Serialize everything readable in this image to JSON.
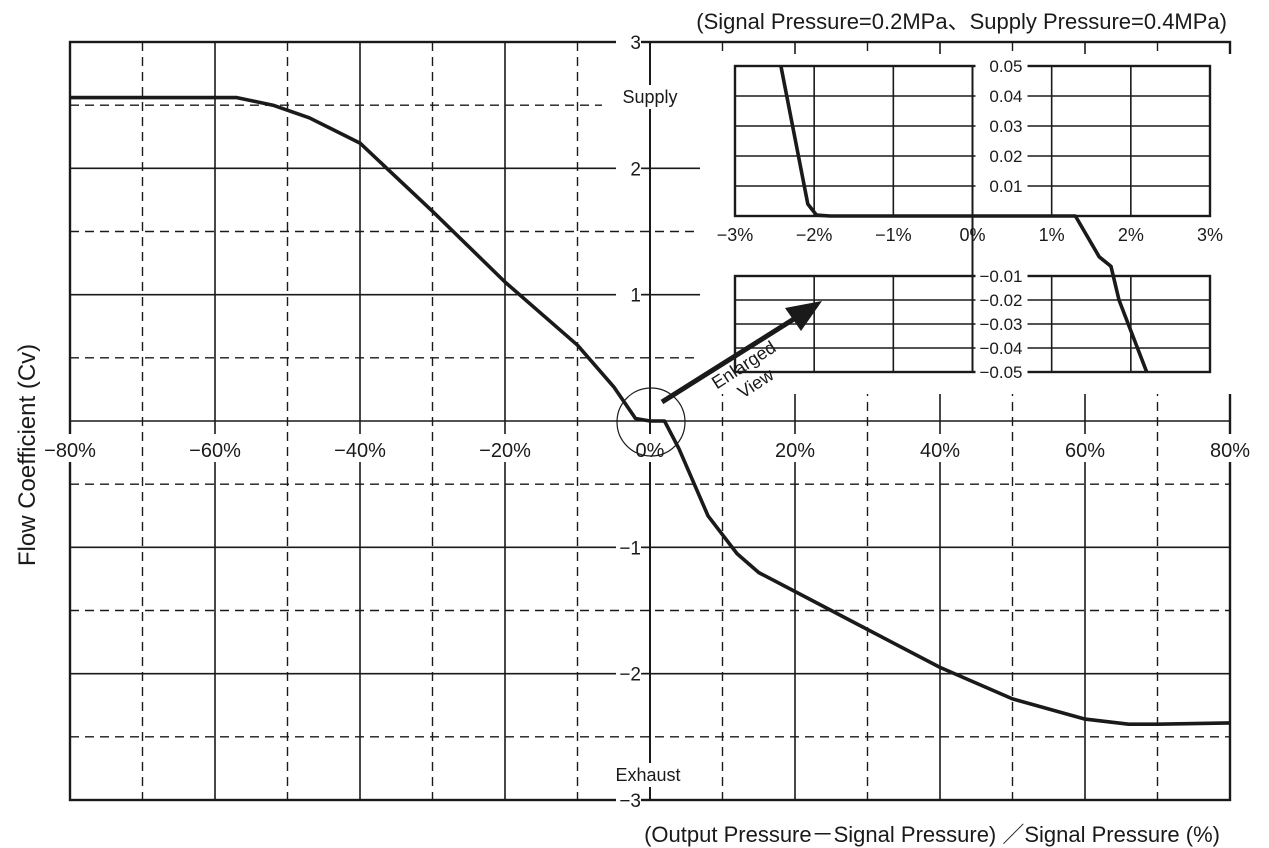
{
  "chart_data": {
    "type": "line",
    "title": "(Signal Pressure=0.2MPa、Supply Pressure=0.4MPa)",
    "xlabel": "(Output Pressure－Signal Pressure) ／Signal Pressure (%)",
    "ylabel": "Flow Coefficient (Cv)",
    "xlim": [
      -80,
      80
    ],
    "ylim": [
      -3,
      3
    ],
    "x_ticks": [
      "−80%",
      "−60%",
      "−40%",
      "−20%",
      "0%",
      "20%",
      "40%",
      "60%",
      "80%"
    ],
    "y_ticks": [
      "−3",
      "−2",
      "−1",
      "1",
      "2",
      "3"
    ],
    "region_labels": {
      "supply": "Supply",
      "exhaust": "Exhaust"
    },
    "grid": true,
    "series": [
      {
        "x": [
          -80,
          -57,
          -52,
          -47,
          -40,
          -30,
          -20,
          -10,
          -5,
          -2,
          0,
          2,
          4,
          8,
          12,
          15,
          20,
          30,
          40,
          50,
          60,
          66,
          70,
          80
        ],
        "y": [
          2.56,
          2.56,
          2.5,
          2.4,
          2.2,
          1.66,
          1.1,
          0.6,
          0.27,
          0.02,
          0.0,
          0.0,
          -0.22,
          -0.75,
          -1.05,
          -1.2,
          -1.35,
          -1.65,
          -1.95,
          -2.2,
          -2.36,
          -2.4,
          -2.4,
          -2.39
        ]
      }
    ],
    "annotation": {
      "line1": "Enlarged",
      "line2": "View"
    },
    "inset": {
      "type": "line",
      "xlim": [
        -3,
        3
      ],
      "ylim": [
        -0.05,
        0.05
      ],
      "x_ticks": [
        "−3%",
        "−2%",
        "−1%",
        "0%",
        "1%",
        "2%",
        "3%"
      ],
      "y_ticks": [
        "0.05",
        "0.04",
        "0.03",
        "0.02",
        "0.01",
        "−0.01",
        "−0.02",
        "−0.03",
        "−0.04",
        "−0.05"
      ],
      "series": [
        {
          "x": [
            -2.42,
            -2.08,
            -1.97,
            -1.8,
            1.3,
            1.6,
            1.75,
            1.85,
            2.2
          ],
          "y": [
            0.05,
            0.004,
            0.0003,
            0.0,
            0.0,
            -0.002,
            -0.006,
            -0.02,
            -0.05
          ]
        }
      ]
    }
  }
}
